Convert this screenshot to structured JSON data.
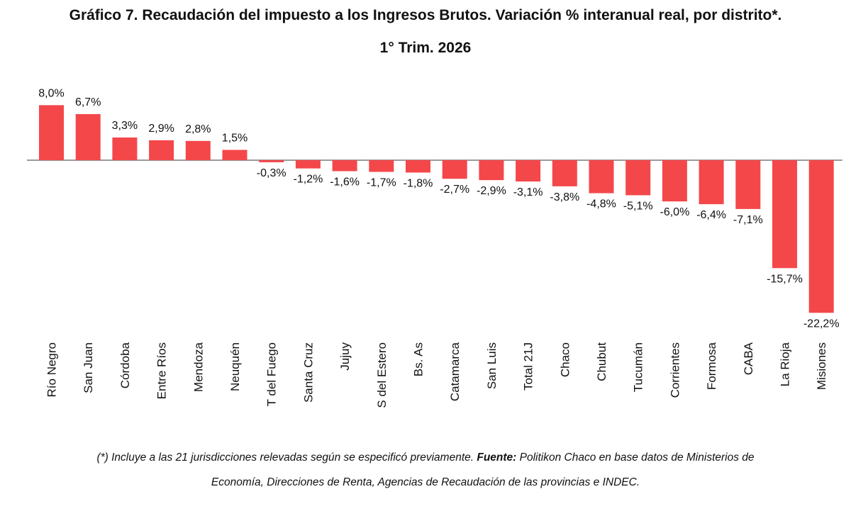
{
  "chart_data": {
    "type": "bar",
    "title": "Gráfico 7. Recaudación del impuesto a los Ingresos Brutos. Variación % interanual real, por distrito*.",
    "subtitle": "1° Trim. 2026",
    "categories": [
      "Río Negro",
      "San Juan",
      "Córdoba",
      "Entre Ríos",
      "Mendoza",
      "Neuquén",
      "T del Fuego",
      "Santa Cruz",
      "Jujuy",
      "S del Estero",
      "Bs. As",
      "Catamarca",
      "San Luis",
      "Total 21J",
      "Chaco",
      "Chubut",
      "Tucumán",
      "Corrientes",
      "Formosa",
      "CABA",
      "La Rioja",
      "Misiones"
    ],
    "values": [
      8.0,
      6.7,
      3.3,
      2.9,
      2.8,
      1.5,
      -0.3,
      -1.2,
      -1.6,
      -1.7,
      -1.8,
      -2.7,
      -2.9,
      -3.1,
      -3.8,
      -4.8,
      -5.1,
      -6.0,
      -6.4,
      -7.1,
      -15.7,
      -22.2
    ],
    "data_labels": [
      "8,0%",
      "6,7%",
      "3,3%",
      "2,9%",
      "2,8%",
      "1,5%",
      "-0,3%",
      "-1,2%",
      "-1,6%",
      "-1,7%",
      "-1,8%",
      "-2,7%",
      "-2,9%",
      "-3,1%",
      "-3,8%",
      "-4,8%",
      "-5,1%",
      "-6,0%",
      "-6,4%",
      "-7,1%",
      "-15,7%",
      "-22,2%"
    ],
    "ylim": [
      -22.2,
      8.0
    ],
    "grid": false,
    "bar_color": "#f4474a"
  },
  "footnote": {
    "lead": "(*) Incluye a las 21 jurisdicciones relevadas según se especificó previamente.",
    "source_label": "Fuente:",
    "source_text": "Politikon Chaco en base datos de Ministerios de",
    "line2": "Economía, Direcciones de Renta, Agencias de Recaudación de las provincias e INDEC."
  }
}
